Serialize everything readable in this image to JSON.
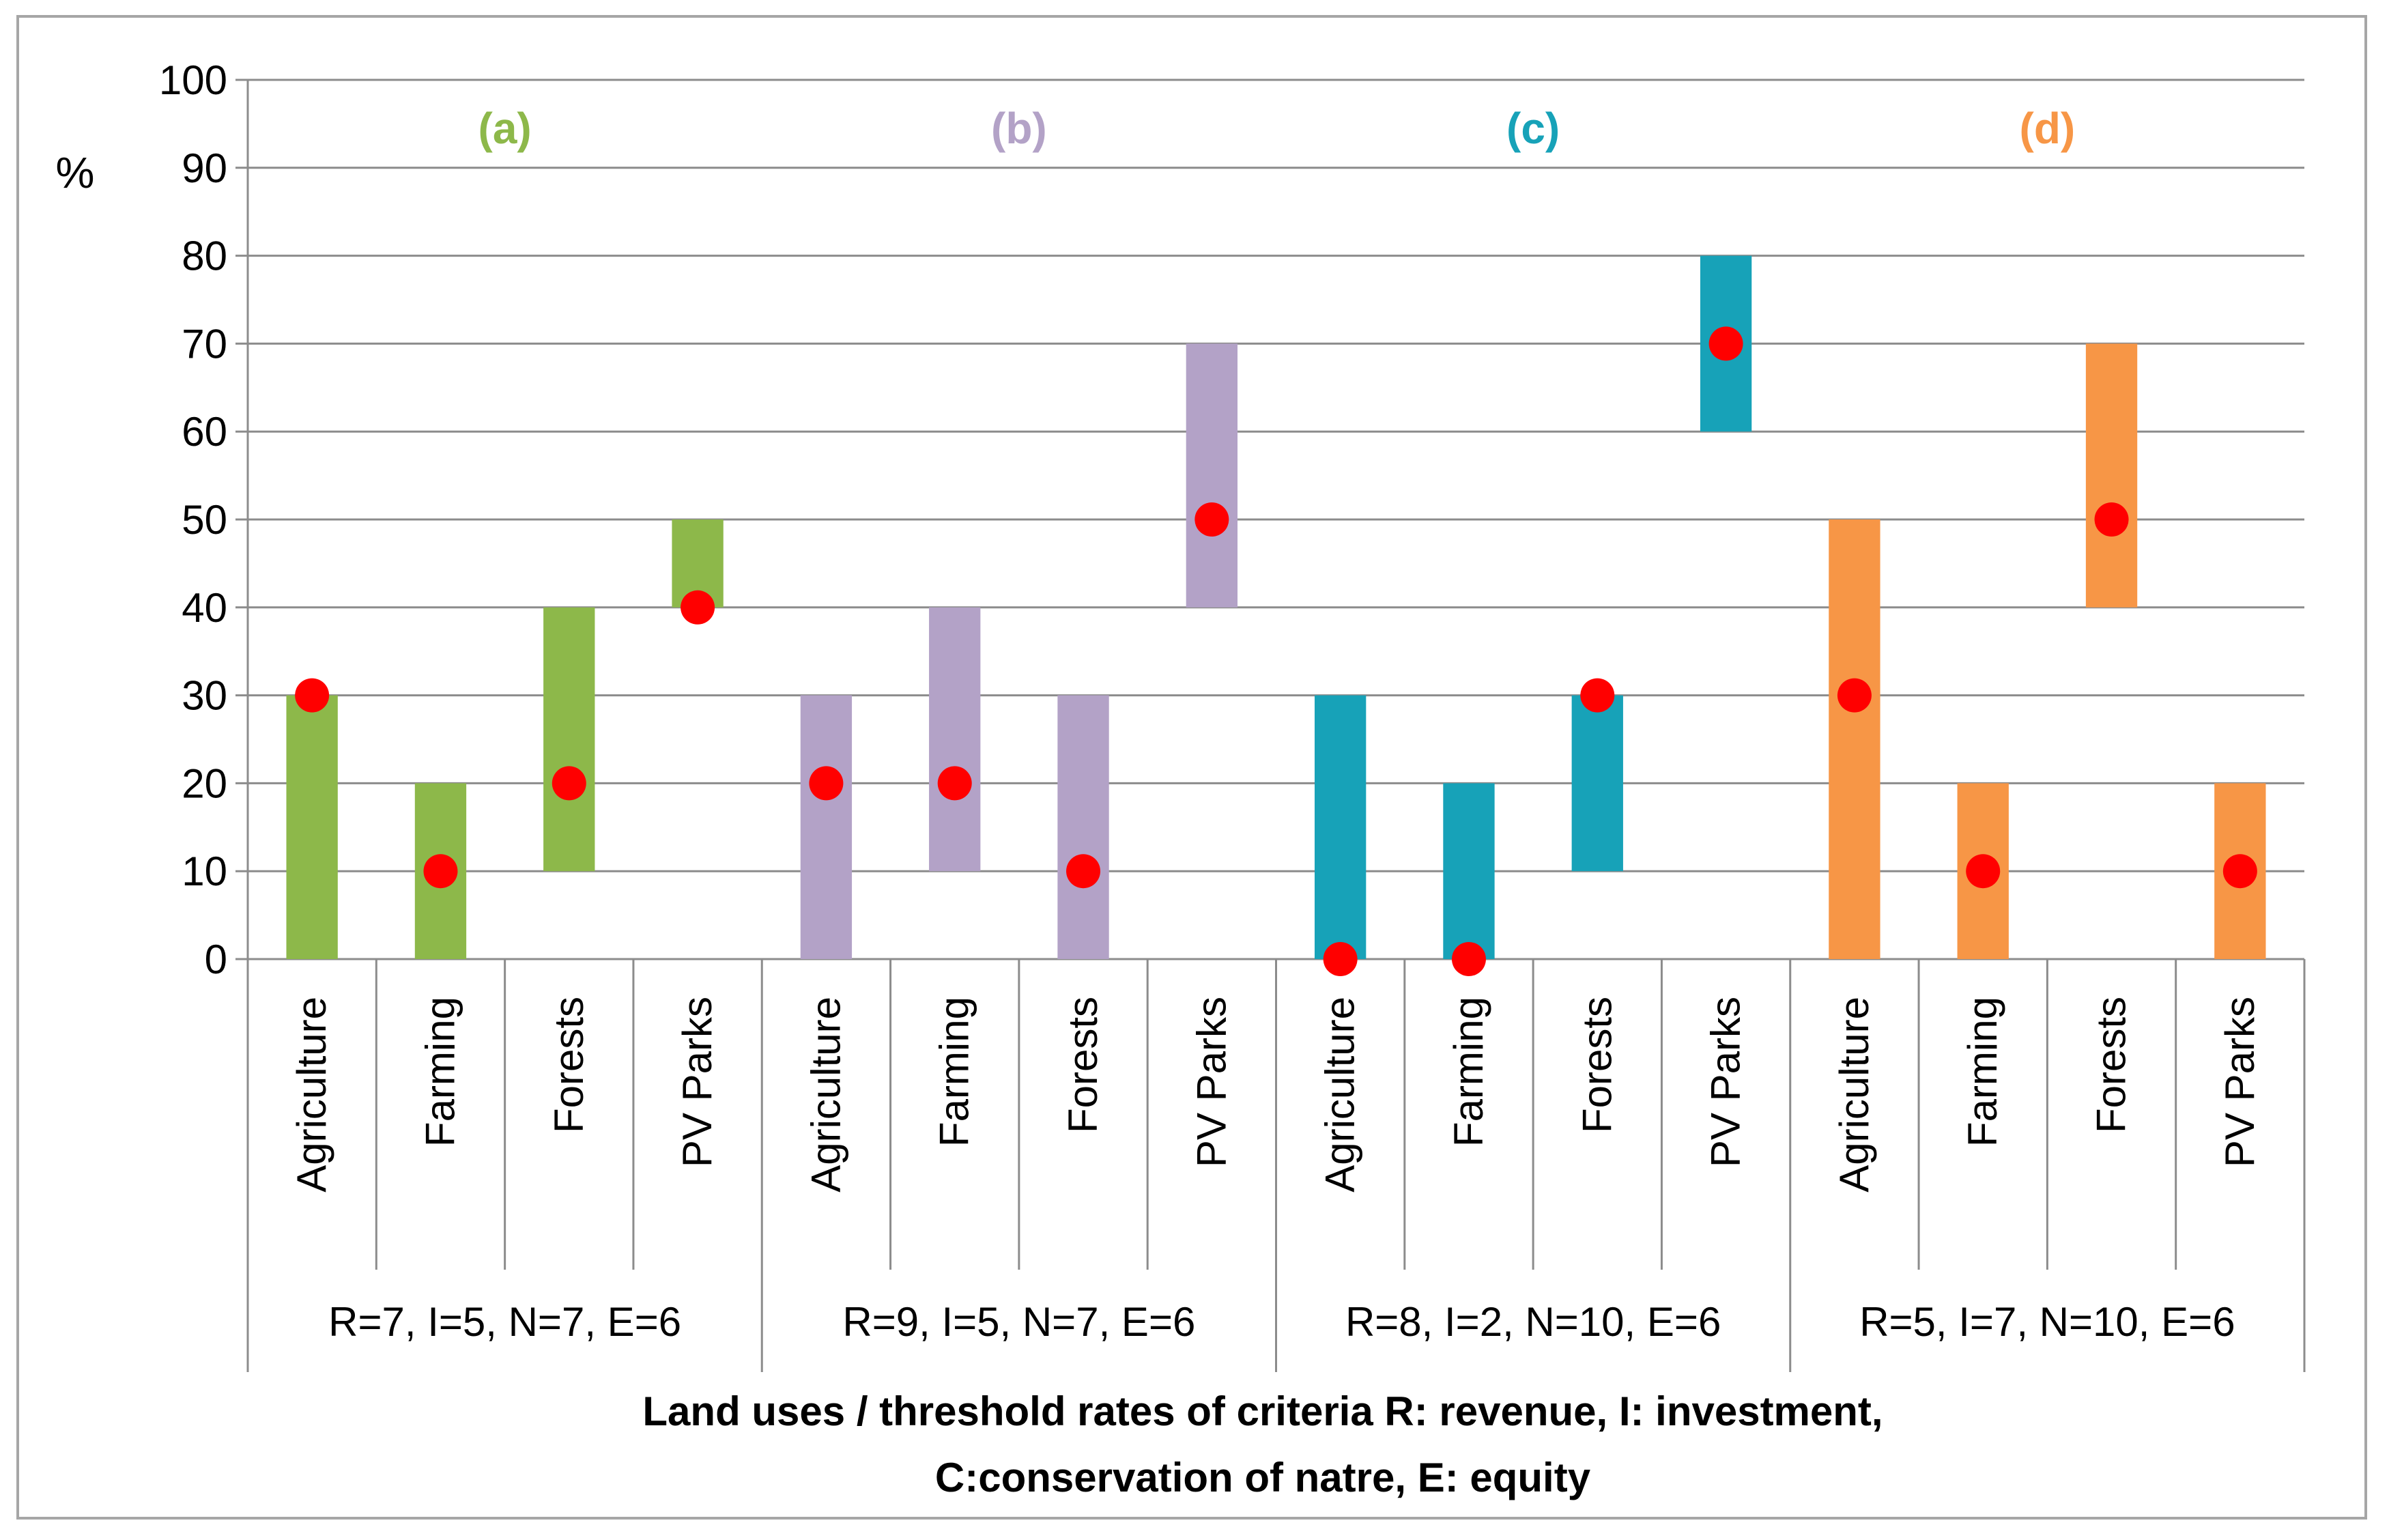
{
  "chart_data": {
    "type": "range-bar",
    "ylabel": "%",
    "ylim": [
      0,
      100
    ],
    "yticks": [
      "0",
      "10",
      "20",
      "30",
      "40",
      "50",
      "60",
      "70",
      "80",
      "90",
      "100"
    ],
    "xlabel_line1": "Land uses / threshold rates of criteria R: revenue, I: investment,",
    "xlabel_line2": "C:conservation of natre, E: equity",
    "grid": true,
    "groups": [
      {
        "panel": "(a)",
        "label": "R=7, I=5, N=7, E=6",
        "color": "#8db84a",
        "items": [
          {
            "category": "Agriculture",
            "low": 0,
            "high": 30,
            "point": 30
          },
          {
            "category": "Farming",
            "low": 0,
            "high": 20,
            "point": 10
          },
          {
            "category": "Forests",
            "low": 10,
            "high": 40,
            "point": 20
          },
          {
            "category": "PV Parks",
            "low": 40,
            "high": 50,
            "point": 40
          }
        ]
      },
      {
        "panel": "(b)",
        "label": "R=9, I=5, N=7, E=6",
        "color": "#b3a2c7",
        "items": [
          {
            "category": "Agriculture",
            "low": 0,
            "high": 30,
            "point": 20
          },
          {
            "category": "Farming",
            "low": 10,
            "high": 40,
            "point": 20
          },
          {
            "category": "Forests",
            "low": 0,
            "high": 30,
            "point": 10
          },
          {
            "category": "PV Parks",
            "low": 40,
            "high": 70,
            "point": 50
          }
        ]
      },
      {
        "panel": "(c)",
        "label": "R=8, I=2, N=10, E=6",
        "color": "#17a2b8",
        "items": [
          {
            "category": "Agriculture",
            "low": 0,
            "high": 30,
            "point": 0
          },
          {
            "category": "Farming",
            "low": 0,
            "high": 20,
            "point": 0
          },
          {
            "category": "Forests",
            "low": 10,
            "high": 30,
            "point": 30
          },
          {
            "category": "PV Parks",
            "low": 60,
            "high": 80,
            "point": 70
          }
        ]
      },
      {
        "panel": "(d)",
        "label": "R=5, I=7, N=10, E=6",
        "color": "#f79646",
        "items": [
          {
            "category": "Agriculture",
            "low": 0,
            "high": 50,
            "point": 30
          },
          {
            "category": "Farming",
            "low": 0,
            "high": 20,
            "point": 10
          },
          {
            "category": "Forests",
            "low": 40,
            "high": 70,
            "point": 50
          },
          {
            "category": "PV Parks",
            "low": 0,
            "high": 20,
            "point": 10
          }
        ]
      }
    ],
    "point_color": "#ff0000"
  }
}
